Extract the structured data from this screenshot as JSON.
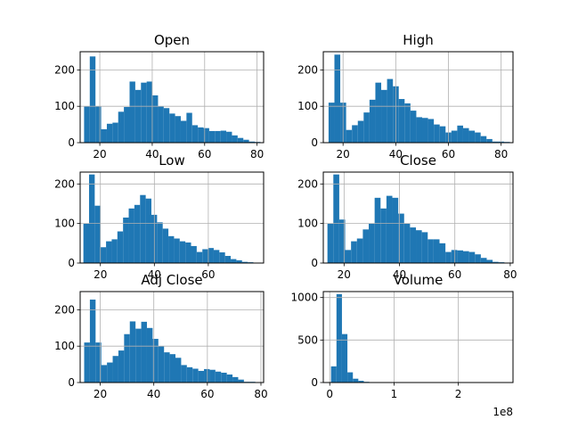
{
  "figure": {
    "background": "#ffffff",
    "bar_color": "#1f77b4",
    "grid_color": "#b0b0b0"
  },
  "chart_data": [
    {
      "type": "bar",
      "title": "Open",
      "xlim": [
        12.5,
        82.5
      ],
      "ylim": [
        0,
        250
      ],
      "xticks": [
        20,
        40,
        60,
        80
      ],
      "yticks": [
        0,
        100,
        200
      ],
      "bin_start": 14.0,
      "bin_width": 2.17,
      "values": [
        100,
        237,
        100,
        37,
        52,
        55,
        85,
        98,
        168,
        145,
        165,
        168,
        130,
        100,
        95,
        80,
        73,
        60,
        82,
        48,
        42,
        40,
        32,
        32,
        33,
        30,
        20,
        13,
        8,
        3,
        2
      ]
    },
    {
      "type": "bar",
      "title": "High",
      "xlim": [
        12.5,
        84.5
      ],
      "ylim": [
        0,
        250
      ],
      "xticks": [
        20,
        40,
        60,
        80
      ],
      "yticks": [
        0,
        100,
        200
      ],
      "bin_start": 14.5,
      "bin_width": 2.22,
      "values": [
        110,
        242,
        110,
        35,
        48,
        60,
        83,
        118,
        165,
        145,
        175,
        155,
        120,
        108,
        88,
        70,
        68,
        65,
        50,
        45,
        28,
        33,
        47,
        40,
        33,
        28,
        18,
        10,
        3,
        3,
        2
      ]
    },
    {
      "type": "bar",
      "title": "Low",
      "xlim": [
        12.5,
        80.5
      ],
      "ylim": [
        0,
        230
      ],
      "xticks": [
        20,
        40,
        60
      ],
      "yticks": [
        0,
        100,
        200
      ],
      "bin_start": 13.7,
      "bin_width": 2.1,
      "values": [
        100,
        224,
        145,
        40,
        55,
        60,
        80,
        115,
        138,
        147,
        172,
        163,
        122,
        103,
        87,
        68,
        62,
        55,
        52,
        43,
        28,
        35,
        38,
        33,
        27,
        18,
        10,
        7,
        3,
        2
      ]
    },
    {
      "type": "bar",
      "title": "Close",
      "xlim": [
        12.5,
        81
      ],
      "ylim": [
        0,
        230
      ],
      "xticks": [
        20,
        40,
        60,
        80
      ],
      "yticks": [
        0,
        100,
        200
      ],
      "bin_start": 14.0,
      "bin_width": 2.13,
      "values": [
        100,
        224,
        110,
        33,
        55,
        62,
        85,
        100,
        165,
        138,
        170,
        165,
        125,
        100,
        90,
        83,
        78,
        60,
        60,
        50,
        28,
        33,
        32,
        30,
        28,
        22,
        13,
        8,
        3,
        2
      ]
    },
    {
      "type": "bar",
      "title": "Adj Close",
      "xlim": [
        12.5,
        81
      ],
      "ylim": [
        0,
        250
      ],
      "xticks": [
        20,
        40,
        60,
        80
      ],
      "yticks": [
        0,
        100,
        200
      ],
      "bin_start": 14.0,
      "bin_width": 2.13,
      "values": [
        110,
        228,
        110,
        48,
        55,
        73,
        88,
        133,
        168,
        148,
        167,
        150,
        120,
        100,
        83,
        78,
        68,
        48,
        42,
        38,
        32,
        37,
        35,
        30,
        27,
        22,
        15,
        8,
        2,
        2
      ]
    },
    {
      "type": "bar",
      "title": "Volume",
      "xlim": [
        -0.1,
        2.85
      ],
      "ylim": [
        0,
        1070
      ],
      "xticks": [
        0,
        1,
        2
      ],
      "yticks": [
        0,
        500,
        1000
      ],
      "offset_label": "1e8",
      "bin_start": 0.02,
      "bin_width": 0.085,
      "values": [
        190,
        1040,
        570,
        120,
        45,
        20,
        8,
        5,
        3,
        2,
        2,
        1,
        1,
        1,
        1,
        1,
        1,
        1,
        1,
        1,
        1,
        1,
        1,
        1,
        1,
        1,
        1,
        1,
        1,
        1
      ]
    }
  ]
}
